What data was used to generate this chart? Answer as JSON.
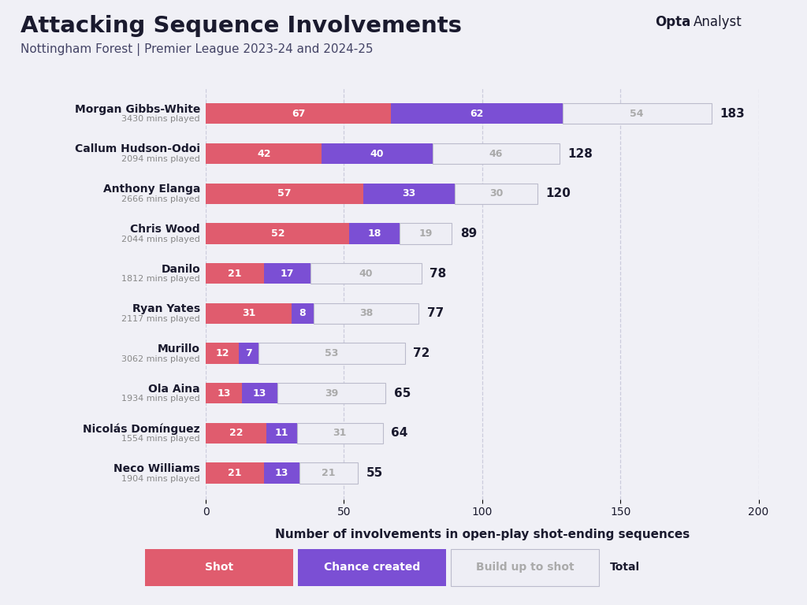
{
  "title": "Attacking Sequence Involvements",
  "subtitle": "Nottingham Forest | Premier League 2023-24 and 2024-25",
  "xlabel": "Number of involvements in open-play shot-ending sequences",
  "players": [
    {
      "name": "Morgan Gibbs-White",
      "mins": "3430 mins played",
      "shot": 67,
      "chance": 62,
      "buildup": 54,
      "total": 183
    },
    {
      "name": "Callum Hudson-Odoi",
      "mins": "2094 mins played",
      "shot": 42,
      "chance": 40,
      "buildup": 46,
      "total": 128
    },
    {
      "name": "Anthony Elanga",
      "mins": "2666 mins played",
      "shot": 57,
      "chance": 33,
      "buildup": 30,
      "total": 120
    },
    {
      "name": "Chris Wood",
      "mins": "2044 mins played",
      "shot": 52,
      "chance": 18,
      "buildup": 19,
      "total": 89
    },
    {
      "name": "Danilo",
      "mins": "1812 mins played",
      "shot": 21,
      "chance": 17,
      "buildup": 40,
      "total": 78
    },
    {
      "name": "Ryan Yates",
      "mins": "2117 mins played",
      "shot": 31,
      "chance": 8,
      "buildup": 38,
      "total": 77
    },
    {
      "name": "Murillo",
      "mins": "3062 mins played",
      "shot": 12,
      "chance": 7,
      "buildup": 53,
      "total": 72
    },
    {
      "name": "Ola Aina",
      "mins": "1934 mins played",
      "shot": 13,
      "chance": 13,
      "buildup": 39,
      "total": 65
    },
    {
      "name": "Nicolás Domínguez",
      "mins": "1554 mins played",
      "shot": 22,
      "chance": 11,
      "buildup": 31,
      "total": 64
    },
    {
      "name": "Neco Williams",
      "mins": "1904 mins played",
      "shot": 21,
      "chance": 13,
      "buildup": 21,
      "total": 55
    }
  ],
  "color_shot": "#E05C6E",
  "color_chance": "#7B4FD4",
  "color_buildup": "#EEEEF5",
  "color_buildup_border": "#BBBBCC",
  "color_buildup_text": "#AAAAAA",
  "color_bg": "#F0F0F6",
  "color_title": "#1a1a2e",
  "color_subtitle": "#444466",
  "color_mins": "#888888",
  "color_bar_text": "#FFFFFF",
  "color_grid": "#CCCCDD",
  "xlim": [
    0,
    200
  ],
  "xticks": [
    0,
    50,
    100,
    150,
    200
  ],
  "legend_labels": [
    "Shot",
    "Chance created",
    "Build up to shot",
    "Total"
  ],
  "bar_height": 0.52
}
